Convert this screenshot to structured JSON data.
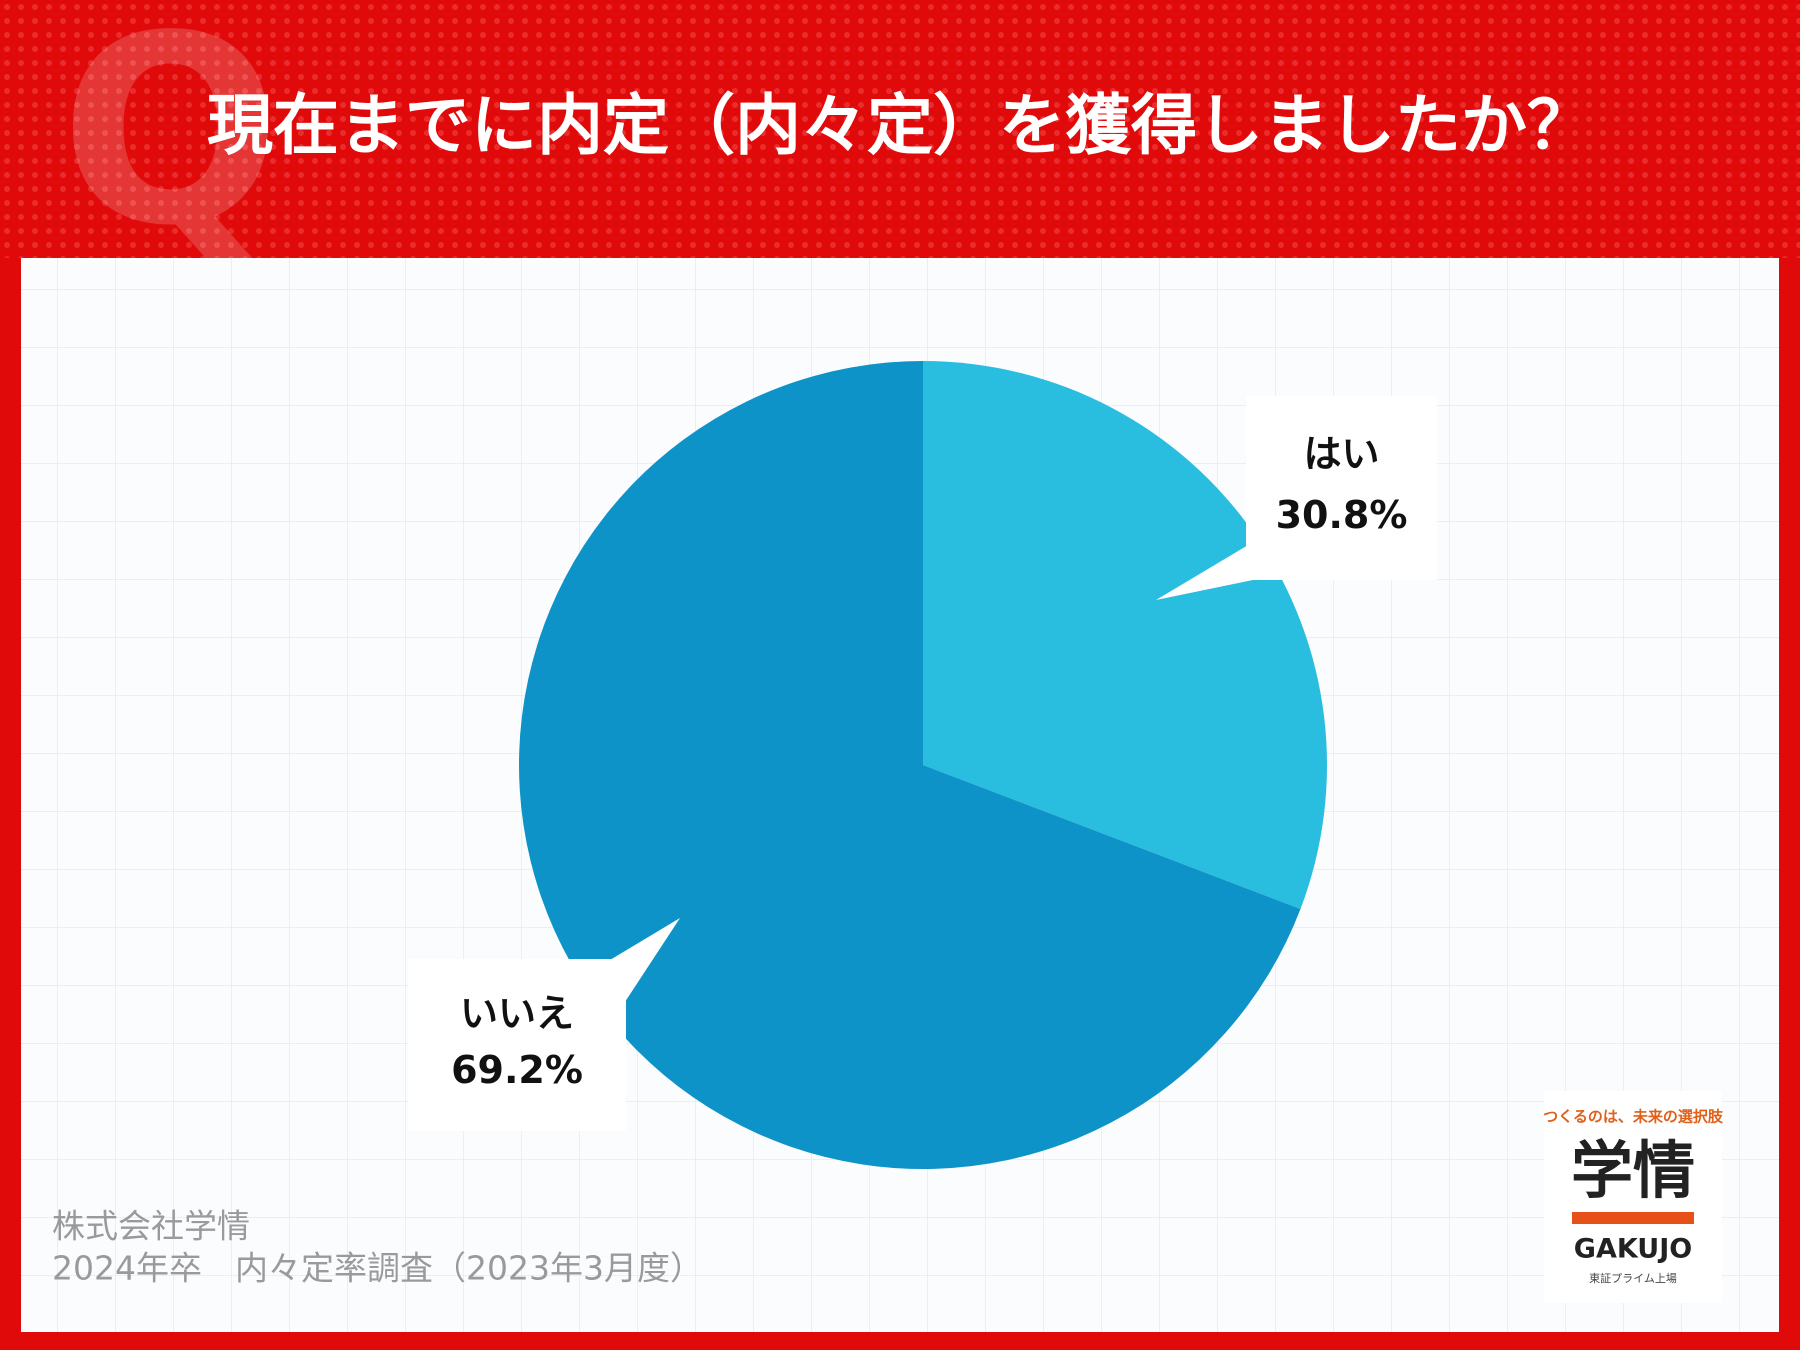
{
  "chart_data": {
    "type": "pie",
    "title": "現在までに内定（内々定）を獲得しましたか？",
    "categories": [
      "はい",
      "いいえ"
    ],
    "values": [
      30.8,
      69.2
    ],
    "value_labels": [
      "30.8%",
      "69.2%"
    ],
    "colors": [
      "#29bde0",
      "#0e93c8"
    ],
    "source": [
      "株式会社学情",
      "2024年卒　内々定率調査（2023年3月度）"
    ]
  },
  "logo": {
    "tagline": "つくるのは、未来の選択肢",
    "name": "学情",
    "roman": "GAKUJO",
    "market": "東証プライム上場"
  }
}
